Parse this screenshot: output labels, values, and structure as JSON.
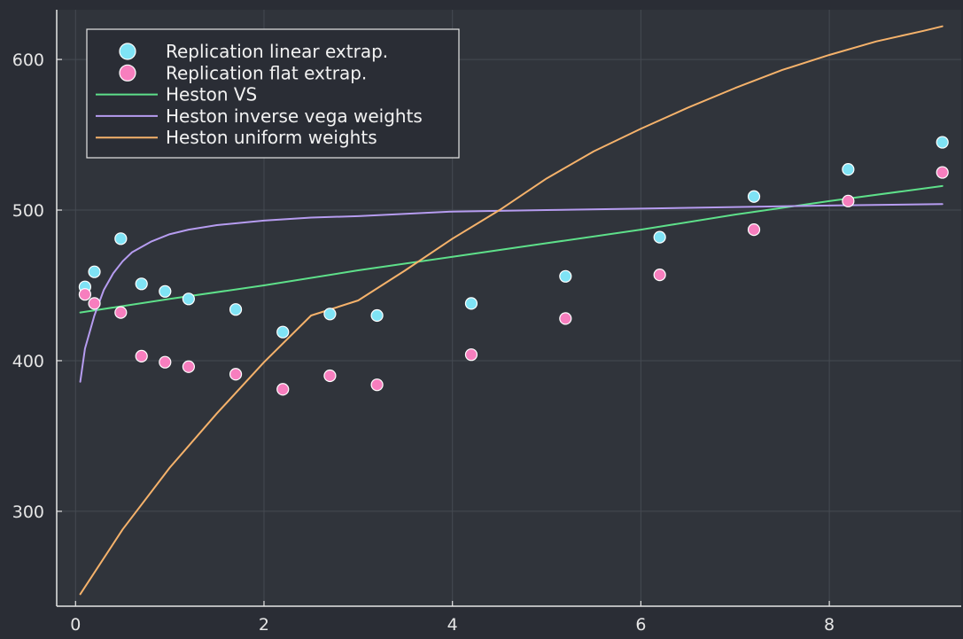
{
  "chart_data": {
    "type": "scatter",
    "title": "",
    "xlabel": "",
    "ylabel": "",
    "xlim": [
      -0.2,
      9.4
    ],
    "ylim": [
      237,
      633
    ],
    "grid": true,
    "legend_position": "top-left",
    "x_ticks": [
      0,
      2,
      4,
      6,
      8
    ],
    "y_ticks": [
      300,
      400,
      500,
      600
    ],
    "x_tick_labels": [
      "0",
      "2",
      "4",
      "6",
      "8"
    ],
    "y_tick_labels": [
      "300",
      "400",
      "500",
      "600"
    ],
    "colors": {
      "background": "#2a2d35",
      "plot_background": "#30343b",
      "axis": "#e6e6e6",
      "grid": "#454a52"
    },
    "series": [
      {
        "name": "Replication linear extrap.",
        "kind": "scatter",
        "color": "#7fe3f5",
        "x": [
          0.1,
          0.2,
          0.48,
          0.7,
          0.95,
          1.2,
          1.7,
          2.2,
          2.7,
          3.2,
          4.2,
          5.2,
          6.2,
          7.2,
          8.2,
          9.2
        ],
        "y": [
          449,
          459,
          481,
          451,
          446,
          441,
          434,
          419,
          431,
          430,
          438,
          456,
          482,
          509,
          527,
          545
        ]
      },
      {
        "name": "Replication flat extrap.",
        "kind": "scatter",
        "color": "#f77ebe",
        "x": [
          0.1,
          0.2,
          0.48,
          0.7,
          0.95,
          1.2,
          1.7,
          2.2,
          2.7,
          3.2,
          4.2,
          5.2,
          6.2,
          7.2,
          8.2,
          9.2
        ],
        "y": [
          444,
          438,
          432,
          403,
          399,
          396,
          391,
          381,
          390,
          384,
          404,
          428,
          457,
          487,
          506,
          525
        ]
      },
      {
        "name": "Heston VS",
        "kind": "line",
        "color": "#5ee08a",
        "x": [
          0.05,
          1,
          2,
          3,
          4,
          5,
          6,
          7,
          8,
          9.2
        ],
        "y": [
          432,
          441,
          450,
          460,
          469,
          478,
          487,
          497,
          506,
          516
        ]
      },
      {
        "name": "Heston inverse vega weights",
        "kind": "line",
        "color": "#b69cf0",
        "x": [
          0.05,
          0.1,
          0.2,
          0.3,
          0.4,
          0.5,
          0.6,
          0.8,
          1.0,
          1.2,
          1.5,
          2,
          2.5,
          3,
          4,
          5,
          6,
          7,
          8,
          9.2
        ],
        "y": [
          386,
          408,
          430,
          447,
          458,
          466,
          472,
          479,
          484,
          487,
          490,
          493,
          495,
          496,
          499,
          500,
          501,
          502,
          503,
          504
        ]
      },
      {
        "name": "Heston uniform weights",
        "kind": "line",
        "color": "#f5b26b",
        "x": [
          0.05,
          0.5,
          1,
          1.5,
          2,
          2.5,
          3,
          3.5,
          4,
          4.5,
          5,
          5.5,
          6,
          6.5,
          7,
          7.5,
          8,
          8.5,
          9,
          9.2
        ],
        "y": [
          245,
          288,
          329,
          365,
          399,
          430,
          440,
          460,
          481,
          500,
          521,
          539,
          554,
          568,
          581,
          593,
          603,
          612,
          619,
          622
        ]
      }
    ]
  }
}
